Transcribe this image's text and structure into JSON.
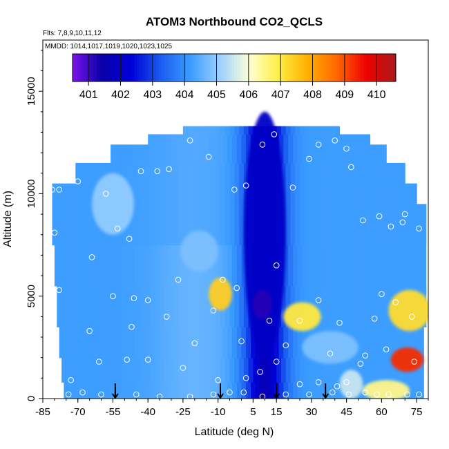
{
  "chart_data": {
    "type": "heatmap",
    "title": "ATOM3 Northbound CO2_QCLS",
    "flights_note": "Flts: 7,8,9,10,11,12",
    "dates_note": "MMDD: 1014,1017,1019,1020,1023,1025",
    "xlabel": "Latitude (deg N)",
    "ylabel": "Altitude (m)",
    "xlim": [
      -85,
      80
    ],
    "ylim": [
      0,
      17500
    ],
    "xticks": [
      "-85",
      "-70",
      "-55",
      "-40",
      "-25",
      "-10",
      "5",
      "15",
      "30",
      "45",
      "60",
      "75"
    ],
    "xtick_values": [
      -85,
      -70,
      -55,
      -40,
      -25,
      -10,
      5,
      15,
      30,
      45,
      60,
      75
    ],
    "yticks": [
      "0",
      "5000",
      "10000",
      "15000"
    ],
    "ytick_values": [
      0,
      5000,
      10000,
      15000
    ],
    "colorbar": {
      "labels": [
        "401",
        "402",
        "403",
        "404",
        "405",
        "406",
        "407",
        "408",
        "409",
        "410"
      ],
      "min": 400.5,
      "max": 410.6,
      "colors": [
        "#7a12e8",
        "#0a00a8",
        "#0000d8",
        "#1a5cf0",
        "#3a9cff",
        "#9ad0ff",
        "#ffffd8",
        "#ffee44",
        "#ffb000",
        "#ff6600",
        "#ee0000",
        "#aa1a1a"
      ]
    },
    "arrow_latitudes": [
      -54,
      -9,
      15,
      36
    ],
    "bands": [
      {
        "y0": 0,
        "y1": 800,
        "x0": -76,
        "x1": 78
      },
      {
        "y0": 800,
        "y1": 2000,
        "x0": -77,
        "x1": 78
      },
      {
        "y0": 2000,
        "y1": 3500,
        "x0": -78,
        "x1": 78
      },
      {
        "y0": 3500,
        "y1": 5500,
        "x0": -79,
        "x1": 79
      },
      {
        "y0": 5500,
        "y1": 7500,
        "x0": -80,
        "x1": 79
      },
      {
        "y0": 7500,
        "y1": 9500,
        "x0": -81,
        "x1": 79
      },
      {
        "y0": 9500,
        "y1": 10500,
        "x0": -81,
        "x1": 75
      },
      {
        "y0": 10500,
        "y1": 11500,
        "x0": -71,
        "x1": 70
      },
      {
        "y0": 11500,
        "y1": 12400,
        "x0": -56,
        "x1": 62
      },
      {
        "y0": 12400,
        "y1": 12900,
        "x0": -40,
        "x1": 55
      },
      {
        "y0": 12900,
        "y1": 13300,
        "x0": -25,
        "x1": 42
      }
    ],
    "features": [
      {
        "lat": 10,
        "alt": 8000,
        "sx": 9,
        "sy": 6000,
        "value": 402.0
      },
      {
        "lat": 9,
        "alt": 4600,
        "sx": 4,
        "sy": 700,
        "value": 401.2
      },
      {
        "lat": -9,
        "alt": 5100,
        "sx": 5,
        "sy": 800,
        "value": 407.4
      },
      {
        "lat": 26,
        "alt": 4000,
        "sx": 8,
        "sy": 700,
        "value": 407.0
      },
      {
        "lat": 72,
        "alt": 4300,
        "sx": 9,
        "sy": 1000,
        "value": 407.2
      },
      {
        "lat": 71,
        "alt": 1900,
        "sx": 7,
        "sy": 600,
        "value": 409.3
      },
      {
        "lat": 62,
        "alt": 400,
        "sx": 10,
        "sy": 500,
        "value": 406.5
      },
      {
        "lat": 47,
        "alt": 700,
        "sx": 5,
        "sy": 700,
        "value": 405.5
      },
      {
        "lat": -55,
        "alt": 9500,
        "sx": 9,
        "sy": 1500,
        "value": 405.0
      },
      {
        "lat": -18,
        "alt": 7200,
        "sx": 8,
        "sy": 1000,
        "value": 404.8
      },
      {
        "lat": 38,
        "alt": 2500,
        "sx": 12,
        "sy": 800,
        "value": 404.8
      }
    ],
    "obs_points": [
      [
        -78,
        10200
      ],
      [
        -80,
        8100
      ],
      [
        -81,
        10200
      ],
      [
        -70,
        10600
      ],
      [
        -63,
        11800
      ],
      [
        -58,
        10000
      ],
      [
        -53,
        8300
      ],
      [
        -48,
        7800
      ],
      [
        -43,
        11100
      ],
      [
        -36,
        11100
      ],
      [
        -31,
        11200
      ],
      [
        -22,
        12600
      ],
      [
        -14,
        11800
      ],
      [
        -3,
        10200
      ],
      [
        2,
        10400
      ],
      [
        9,
        12400
      ],
      [
        14,
        12900
      ],
      [
        22,
        10300
      ],
      [
        29,
        11700
      ],
      [
        33,
        12400
      ],
      [
        40,
        12600
      ],
      [
        45,
        12200
      ],
      [
        47,
        11300
      ],
      [
        52,
        8700
      ],
      [
        59,
        8900
      ],
      [
        64,
        8400
      ],
      [
        69,
        8600
      ],
      [
        70,
        9000
      ],
      [
        76,
        8300
      ],
      [
        -64,
        6900
      ],
      [
        -78,
        5300
      ],
      [
        -65,
        3300
      ],
      [
        -55,
        5000
      ],
      [
        -46,
        4900
      ],
      [
        -40,
        4800
      ],
      [
        -47,
        3500
      ],
      [
        -32,
        4000
      ],
      [
        -27,
        5800
      ],
      [
        -20,
        2700
      ],
      [
        -12,
        4300
      ],
      [
        -2,
        5400
      ],
      [
        -8,
        5800
      ],
      [
        0,
        2800
      ],
      [
        12,
        3800
      ],
      [
        15,
        6500
      ],
      [
        19,
        2600
      ],
      [
        25,
        3800
      ],
      [
        33,
        4800
      ],
      [
        38,
        2200
      ],
      [
        42,
        3700
      ],
      [
        53,
        2100
      ],
      [
        57,
        3900
      ],
      [
        66,
        4700
      ],
      [
        60,
        5100
      ],
      [
        73,
        4000
      ],
      [
        74,
        1800
      ],
      [
        62,
        2400
      ],
      [
        51,
        1700
      ],
      [
        45,
        800
      ],
      [
        41,
        600
      ],
      [
        33,
        800
      ],
      [
        25,
        700
      ],
      [
        15,
        1800
      ],
      [
        8,
        1300
      ],
      [
        2,
        1000
      ],
      [
        -10,
        900
      ],
      [
        -25,
        1500
      ],
      [
        -40,
        1900
      ],
      [
        -49,
        1900
      ],
      [
        -61,
        1800
      ],
      [
        -73,
        900
      ],
      [
        -74,
        200
      ],
      [
        -68,
        300
      ],
      [
        -60,
        200
      ],
      [
        -45,
        200
      ],
      [
        -35,
        100
      ],
      [
        -22,
        100
      ],
      [
        -12,
        200
      ],
      [
        -5,
        300
      ],
      [
        1,
        300
      ],
      [
        9,
        100
      ],
      [
        19,
        200
      ],
      [
        29,
        200
      ],
      [
        39,
        300
      ],
      [
        46,
        200
      ],
      [
        53,
        300
      ],
      [
        58,
        200
      ],
      [
        63,
        200
      ],
      [
        71,
        200
      ],
      [
        76,
        200
      ]
    ]
  }
}
